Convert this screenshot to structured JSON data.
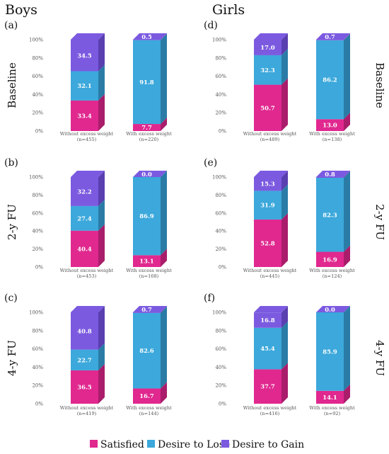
{
  "chart_data": {
    "type": "bar",
    "stacked": true,
    "group_headers": [
      "Boys",
      "Girls"
    ],
    "row_labels": [
      "Baseline",
      "2-y FU",
      "4-y FU"
    ],
    "yticks": [
      "0%",
      "20%",
      "40%",
      "60%",
      "80%",
      "100%"
    ],
    "ylim": [
      0,
      100
    ],
    "legend": {
      "position": "bottom",
      "entries": [
        "Satisfied",
        "Desire to Lose",
        "Desire to Gain"
      ]
    },
    "colors": {
      "Satisfied": "#e0288f",
      "Desire to Lose": "#3ca8db",
      "Desire to Gain": "#7b5ae0",
      "Satisfied_side": "#a91d6b",
      "Desire to Lose_side": "#2a7ca6",
      "Desire to Gain_side": "#5a3fb0"
    },
    "panels": [
      {
        "label": "(a)",
        "group": "Boys",
        "row": "Baseline",
        "categories": [
          "Without excess weight",
          "With excess weight"
        ],
        "n": [
          "(n=455)",
          "(n=220)"
        ],
        "series": [
          {
            "name": "Satisfied",
            "values": [
              33.4,
              7.7
            ]
          },
          {
            "name": "Desire to Lose",
            "values": [
              32.1,
              91.8
            ]
          },
          {
            "name": "Desire to Gain",
            "values": [
              34.5,
              0.5
            ]
          }
        ],
        "labels": [
          [
            "33.4",
            "7.7"
          ],
          [
            "32.1",
            "91.8"
          ],
          [
            "34.5",
            "0.5"
          ]
        ]
      },
      {
        "label": "(d)",
        "group": "Girls",
        "row": "Baseline",
        "categories": [
          "Without excess weight",
          "With excess weight"
        ],
        "n": [
          "(n=489)",
          "(n=138)"
        ],
        "series": [
          {
            "name": "Satisfied",
            "values": [
              50.7,
              13.0
            ]
          },
          {
            "name": "Desire to Lose",
            "values": [
              32.3,
              86.2
            ]
          },
          {
            "name": "Desire to Gain",
            "values": [
              17.0,
              0.7
            ]
          }
        ],
        "labels": [
          [
            "50.7",
            "13.0"
          ],
          [
            "32.3",
            "86.2"
          ],
          [
            "17.0",
            "0.7"
          ]
        ]
      },
      {
        "label": "(b)",
        "group": "Boys",
        "row": "2-y FU",
        "categories": [
          "Without excess weight",
          "With excess weight"
        ],
        "n": [
          "(n=453)",
          "(n=168)"
        ],
        "series": [
          {
            "name": "Satisfied",
            "values": [
              40.4,
              13.1
            ]
          },
          {
            "name": "Desire to Lose",
            "values": [
              27.4,
              86.9
            ]
          },
          {
            "name": "Desire to Gain",
            "values": [
              32.2,
              0.0
            ]
          }
        ],
        "labels": [
          [
            "40.4",
            "13.1"
          ],
          [
            "27.4",
            "86.9"
          ],
          [
            "32.2",
            "0.0"
          ]
        ]
      },
      {
        "label": "(e)",
        "group": "Girls",
        "row": "2-y FU",
        "categories": [
          "Without excess weight",
          "With excess weight"
        ],
        "n": [
          "(n=445)",
          "(n=124)"
        ],
        "series": [
          {
            "name": "Satisfied",
            "values": [
              52.8,
              16.9
            ]
          },
          {
            "name": "Desire to Lose",
            "values": [
              31.9,
              82.3
            ]
          },
          {
            "name": "Desire to Gain",
            "values": [
              15.3,
              0.8
            ]
          }
        ],
        "labels": [
          [
            "52.8",
            "16.9"
          ],
          [
            "31.9",
            "82.3"
          ],
          [
            "15.3",
            "0.8"
          ]
        ]
      },
      {
        "label": "(c)",
        "group": "Boys",
        "row": "4-y FU",
        "categories": [
          "Without excess weight",
          "With excess weight"
        ],
        "n": [
          "(n=419)",
          "(n=144)"
        ],
        "series": [
          {
            "name": "Satisfied",
            "values": [
              36.5,
              16.7
            ]
          },
          {
            "name": "Desire to Lose",
            "values": [
              22.7,
              82.6
            ]
          },
          {
            "name": "Desire to Gain",
            "values": [
              40.8,
              0.7
            ]
          }
        ],
        "labels": [
          [
            "36.5",
            "16.7"
          ],
          [
            "22.7",
            "82.6"
          ],
          [
            "40.8",
            "0.7"
          ]
        ]
      },
      {
        "label": "(f)",
        "group": "Girls",
        "row": "4-y FU",
        "categories": [
          "Without excess weight",
          "With excess weight"
        ],
        "n": [
          "(n=416)",
          "(n=92)"
        ],
        "series": [
          {
            "name": "Satisfied",
            "values": [
              37.7,
              14.1
            ]
          },
          {
            "name": "Desire to Lose",
            "values": [
              45.4,
              85.9
            ]
          },
          {
            "name": "Desire to Gain",
            "values": [
              16.8,
              0.0
            ]
          }
        ],
        "labels": [
          [
            "37.7",
            "14.1"
          ],
          [
            "45.4",
            "85.9"
          ],
          [
            "16.8",
            "0.0"
          ]
        ]
      }
    ]
  }
}
